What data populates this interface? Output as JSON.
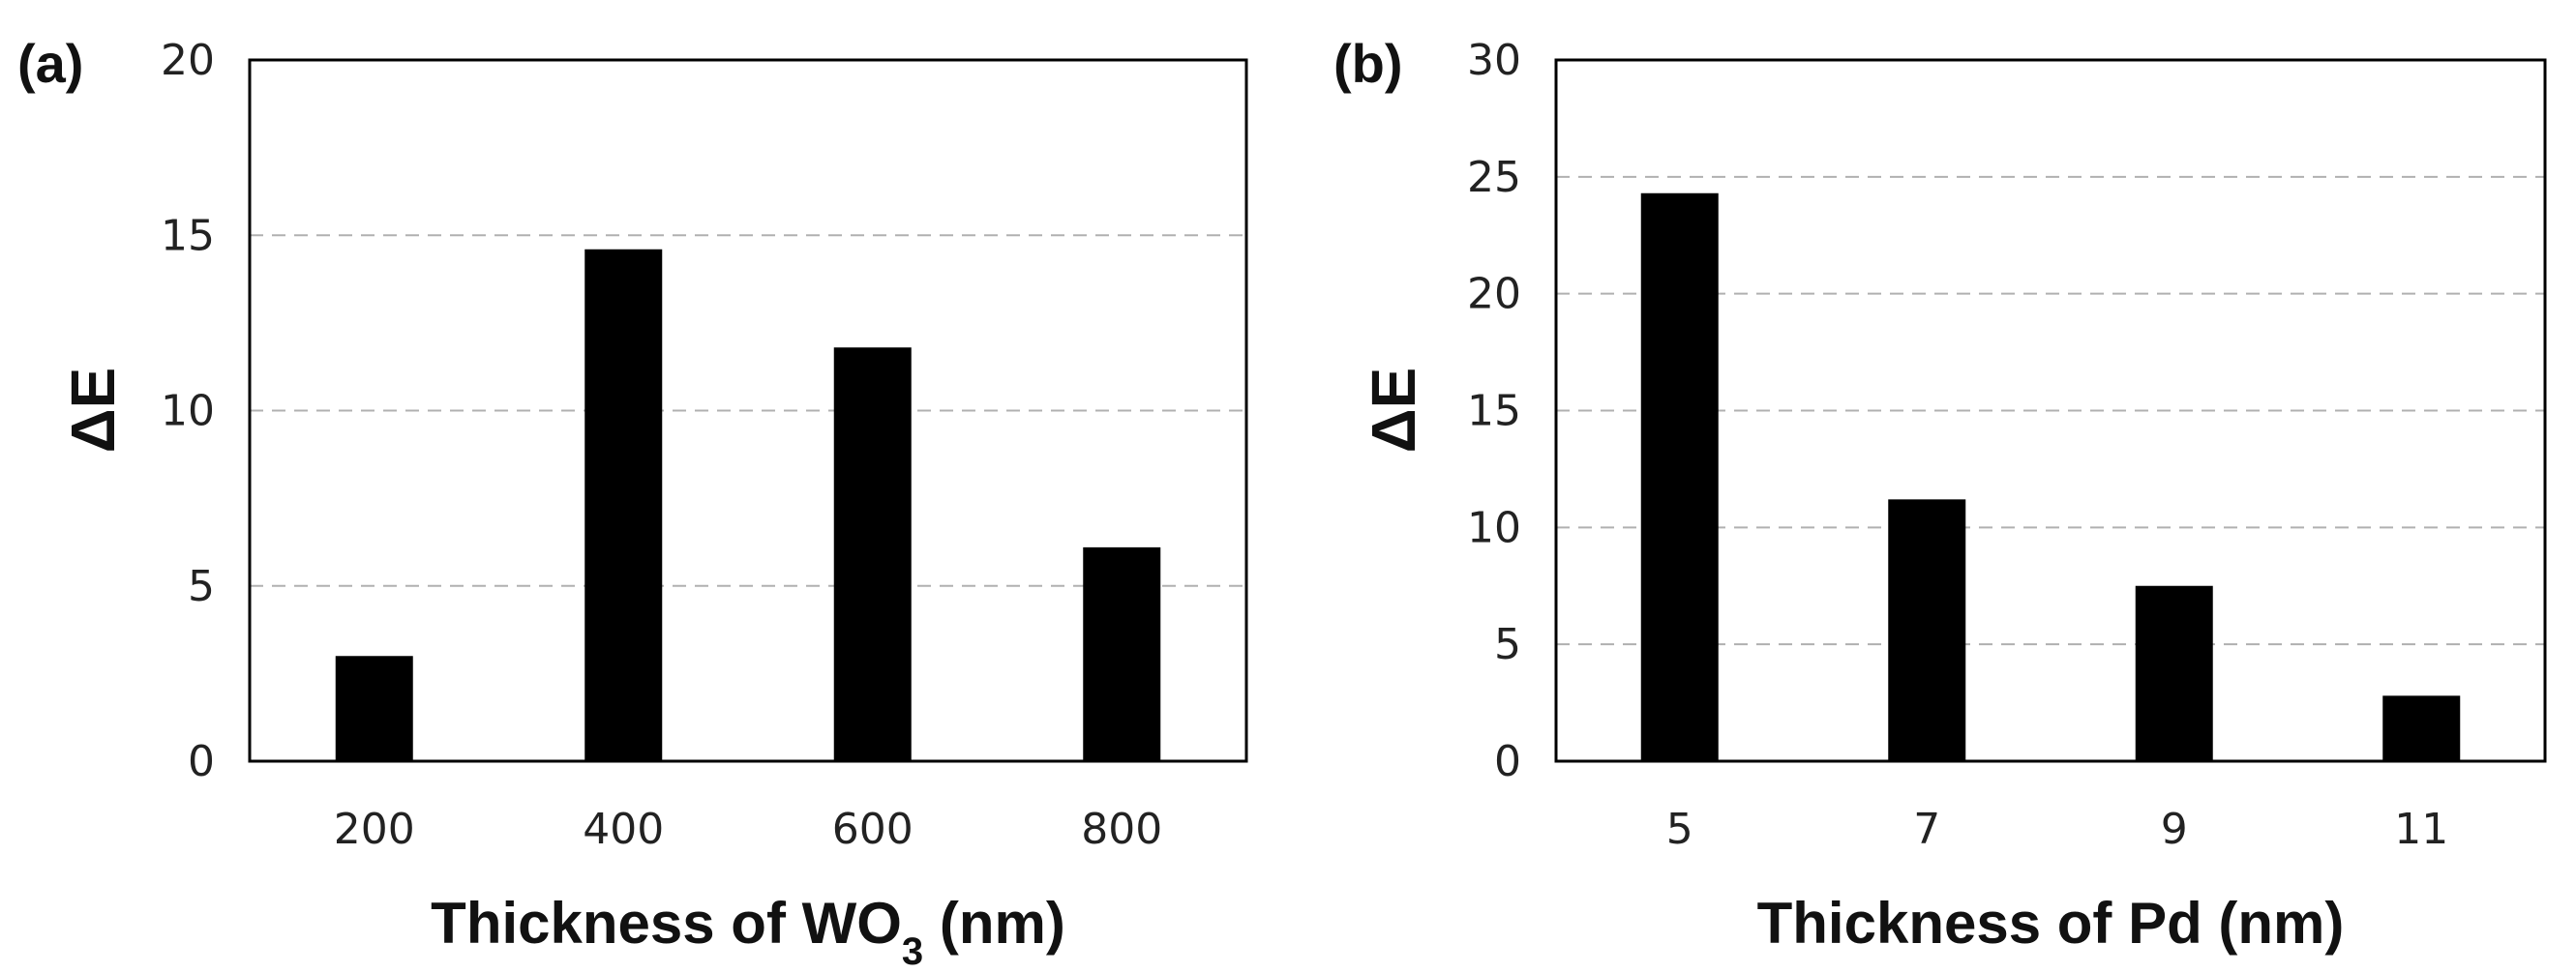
{
  "chart_data": [
    {
      "type": "bar",
      "panel_label": "(a)",
      "categories": [
        "200",
        "400",
        "600",
        "800"
      ],
      "values": [
        3.0,
        14.6,
        11.8,
        6.1
      ],
      "ylabel": "ΔE",
      "xlabel_parts": {
        "pre": "Thickness of WO",
        "sub": "3",
        "post": " (nm)"
      },
      "ylim": [
        0,
        20
      ],
      "yticks": [
        "0",
        "5",
        "10",
        "15",
        "20"
      ],
      "grid": "dashed horizontal",
      "bar_color": "#000000",
      "grid_color": "#b0b0b0"
    },
    {
      "type": "bar",
      "panel_label": "(b)",
      "categories": [
        "5",
        "7",
        "9",
        "11"
      ],
      "values": [
        24.3,
        11.2,
        7.5,
        2.8
      ],
      "ylabel": "ΔE",
      "xlabel_parts": {
        "pre": "Thickness of Pd (nm)",
        "sub": "",
        "post": ""
      },
      "ylim": [
        0,
        30
      ],
      "yticks": [
        "0",
        "5",
        "10",
        "15",
        "20",
        "25",
        "30"
      ],
      "grid": "dashed horizontal",
      "bar_color": "#000000",
      "grid_color": "#b0b0b0"
    }
  ]
}
